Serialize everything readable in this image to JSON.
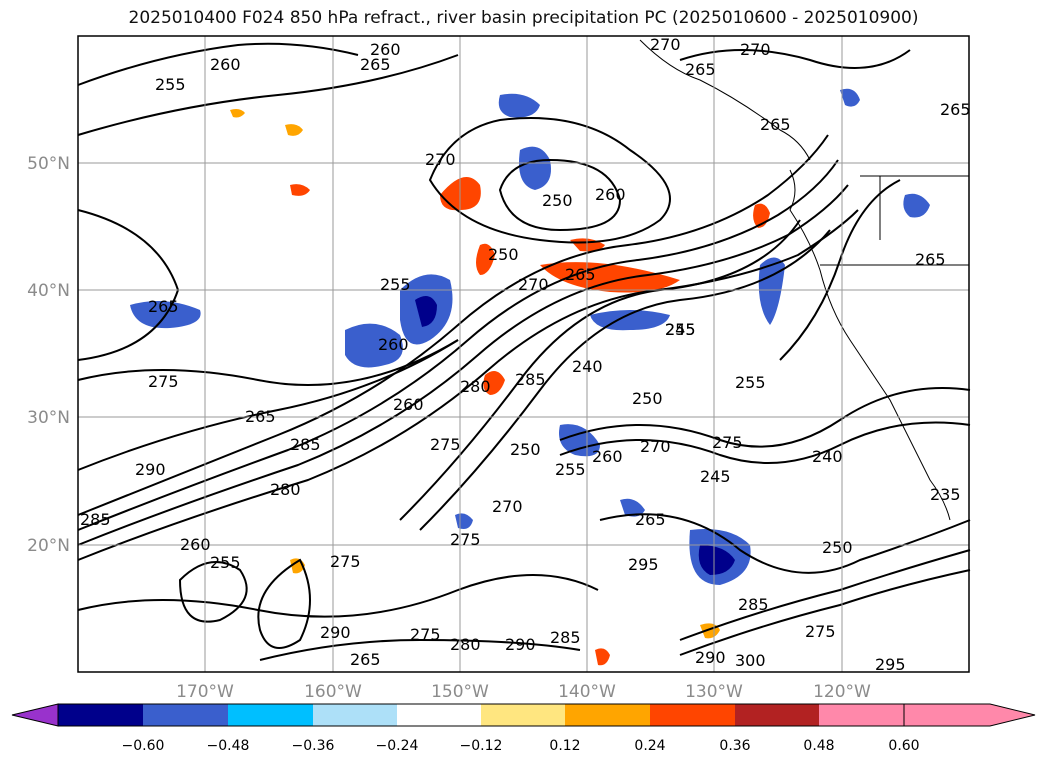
{
  "title": "2025010400 F024 850 hPa refract., river basin precipitation PC (2025010600 - 2025010900)",
  "map": {
    "lat_labels": [
      "50°N",
      "40°N",
      "30°N",
      "20°N"
    ],
    "lon_labels": [
      "170°W",
      "160°W",
      "150°W",
      "140°W",
      "130°W",
      "120°W"
    ],
    "contour_labels": [
      "255",
      "260",
      "260",
      "265",
      "270",
      "270",
      "265",
      "265",
      "265",
      "270",
      "250",
      "260",
      "250",
      "255",
      "270",
      "265",
      "265",
      "265",
      "255",
      "260",
      "245",
      "240",
      "275",
      "255",
      "250",
      "280",
      "285",
      "260",
      "265",
      "285",
      "275",
      "260",
      "270",
      "275",
      "245",
      "240",
      "290",
      "280",
      "250",
      "255",
      "270",
      "265",
      "235",
      "285",
      "260",
      "295",
      "250",
      "255",
      "275",
      "275",
      "285",
      "290",
      "285",
      "275",
      "280",
      "290",
      "290",
      "300",
      "275",
      "295",
      "265"
    ]
  },
  "colorbar": {
    "tick_labels": [
      "−0.60",
      "−0.48",
      "−0.36",
      "−0.24",
      "−0.12",
      "0.12",
      "0.24",
      "0.36",
      "0.48",
      "0.60"
    ],
    "colors": [
      "#9932CC",
      "#00008B",
      "#3A5FCD",
      "#00BFFF",
      "#ADE0F8",
      "#FFFFFF",
      "#FFE680",
      "#FFA500",
      "#FF4500",
      "#B22222",
      "#FF88AA"
    ]
  }
}
